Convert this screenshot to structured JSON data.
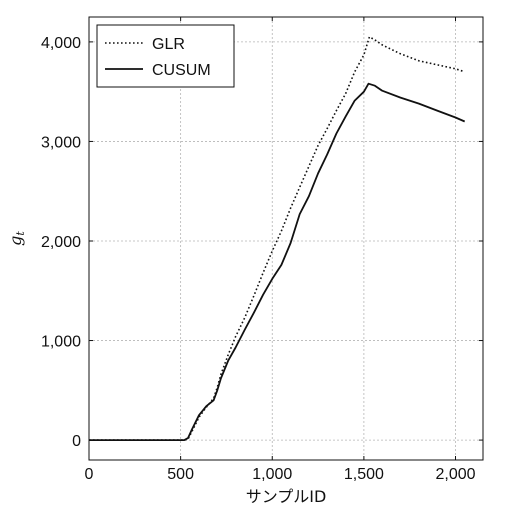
{
  "chart_data": {
    "type": "line",
    "xlabel": "サンプルID",
    "ylabel_main": "g",
    "ylabel_sub": "t",
    "xlim": [
      0,
      2150
    ],
    "ylim": [
      -200,
      4250
    ],
    "xticks": [
      0,
      500,
      1000,
      1500,
      2000
    ],
    "xtick_labels": [
      "0",
      "500",
      "1,000",
      "1,500",
      "2,000"
    ],
    "yticks": [
      0,
      1000,
      2000,
      3000,
      4000
    ],
    "ytick_labels": [
      "0",
      "1,000",
      "2,000",
      "3,000",
      "4,000"
    ],
    "grid": true,
    "legend_position": "top-left",
    "series": [
      {
        "name": "GLR",
        "style": "dotted",
        "color": "#111111",
        "x": [
          0,
          520,
          540,
          560,
          600,
          640,
          680,
          700,
          720,
          760,
          800,
          850,
          900,
          950,
          1000,
          1050,
          1100,
          1150,
          1200,
          1250,
          1300,
          1350,
          1400,
          1450,
          1500,
          1530,
          1560,
          1600,
          1700,
          1800,
          1900,
          2000,
          2050
        ],
        "y": [
          0,
          0,
          10,
          80,
          230,
          330,
          420,
          530,
          660,
          860,
          1040,
          1230,
          1450,
          1680,
          1900,
          2100,
          2330,
          2540,
          2750,
          2960,
          3130,
          3310,
          3480,
          3700,
          3870,
          4050,
          4020,
          3970,
          3880,
          3810,
          3770,
          3730,
          3700
        ]
      },
      {
        "name": "CUSUM",
        "style": "solid",
        "color": "#111111",
        "x": [
          0,
          520,
          540,
          560,
          600,
          640,
          680,
          700,
          720,
          760,
          800,
          850,
          900,
          950,
          1000,
          1050,
          1100,
          1150,
          1200,
          1250,
          1300,
          1350,
          1400,
          1450,
          1500,
          1525,
          1560,
          1600,
          1700,
          1800,
          1900,
          2000,
          2050
        ],
        "y": [
          0,
          0,
          20,
          100,
          250,
          340,
          400,
          500,
          620,
          800,
          930,
          1110,
          1280,
          1460,
          1620,
          1760,
          1980,
          2270,
          2450,
          2680,
          2870,
          3080,
          3250,
          3410,
          3500,
          3580,
          3560,
          3510,
          3440,
          3380,
          3310,
          3240,
          3200
        ]
      }
    ]
  }
}
